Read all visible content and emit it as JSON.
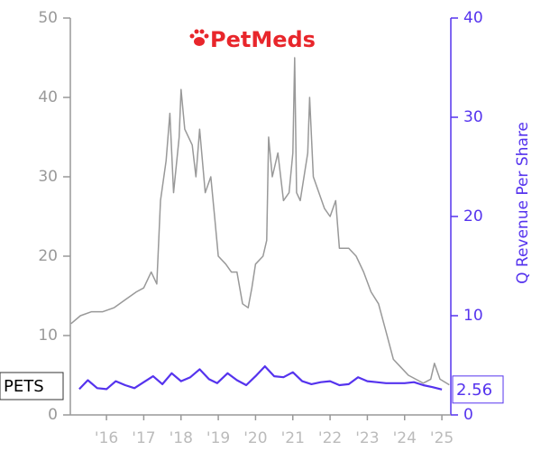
{
  "chart_data": {
    "type": "line",
    "logo": "PetMeds",
    "y2label": "Q Revenue Per Share",
    "xlim": [
      2015.03,
      2025.24
    ],
    "xticks": [
      {
        "value": 2016,
        "label": "'16"
      },
      {
        "value": 2017,
        "label": "'17"
      },
      {
        "value": 2018,
        "label": "'18"
      },
      {
        "value": 2019,
        "label": "'19"
      },
      {
        "value": 2020,
        "label": "'20"
      },
      {
        "value": 2021,
        "label": "'21"
      },
      {
        "value": 2022,
        "label": "'22"
      },
      {
        "value": 2023,
        "label": "'23"
      },
      {
        "value": 2024,
        "label": "'24"
      },
      {
        "value": 2025,
        "label": "'25"
      }
    ],
    "ylim": [
      0,
      50
    ],
    "yticks": [
      0,
      10,
      20,
      30,
      40,
      50
    ],
    "y2lim": [
      0,
      40
    ],
    "y2ticks": [
      0,
      10,
      20,
      30,
      40
    ],
    "series": [
      {
        "name": "PETS",
        "color": "#999999",
        "x": [
          2015.05,
          2015.3,
          2015.6,
          2015.9,
          2016.2,
          2016.5,
          2016.8,
          2017.0,
          2017.2,
          2017.35,
          2017.45,
          2017.6,
          2017.7,
          2017.8,
          2017.95,
          2018.0,
          2018.1,
          2018.3,
          2018.4,
          2018.5,
          2018.65,
          2018.8,
          2018.9,
          2019.0,
          2019.2,
          2019.35,
          2019.5,
          2019.65,
          2019.8,
          2019.9,
          2020.0,
          2020.2,
          2020.3,
          2020.35,
          2020.45,
          2020.6,
          2020.75,
          2020.9,
          2021.0,
          2021.05,
          2021.1,
          2021.2,
          2021.4,
          2021.45,
          2021.55,
          2021.7,
          2021.85,
          2022.0,
          2022.15,
          2022.25,
          2022.5,
          2022.7,
          2022.9,
          2023.1,
          2023.3,
          2023.5,
          2023.7,
          2023.9,
          2024.1,
          2024.3,
          2024.5,
          2024.7,
          2024.8,
          2024.95,
          2025.2
        ],
        "values": [
          11.5,
          12.5,
          13,
          13,
          13.5,
          14.5,
          15.5,
          16,
          18,
          16.5,
          27,
          32,
          38,
          28,
          35,
          41,
          36,
          34,
          30,
          36,
          28,
          30,
          25,
          20,
          19,
          18,
          18,
          14,
          13.5,
          16,
          19,
          20,
          22,
          35,
          30,
          33,
          27,
          28,
          33,
          45,
          28,
          27,
          33,
          40,
          30,
          28,
          26,
          25,
          27,
          21,
          21,
          20,
          18,
          15.5,
          14,
          10.5,
          7,
          6,
          5,
          4.5,
          4,
          4.5,
          6.5,
          4.5,
          3.8
        ]
      },
      {
        "color": "#5533ee",
        "axis": "y2",
        "x": [
          2015.27,
          2015.5,
          2015.75,
          2016.0,
          2016.25,
          2016.5,
          2016.75,
          2017.0,
          2017.25,
          2017.5,
          2017.75,
          2018.0,
          2018.25,
          2018.5,
          2018.75,
          2018.97,
          2019.25,
          2019.5,
          2019.75,
          2020.0,
          2020.25,
          2020.5,
          2020.75,
          2021.0,
          2021.25,
          2021.5,
          2021.75,
          2022.0,
          2022.25,
          2022.5,
          2022.75,
          2023.0,
          2023.25,
          2023.5,
          2023.75,
          2024.0,
          2024.25,
          2024.5,
          2024.75,
          2025.0
        ],
        "values": [
          2.6,
          3.5,
          2.7,
          2.6,
          3.4,
          3.0,
          2.7,
          3.3,
          3.9,
          3.1,
          4.2,
          3.4,
          3.8,
          4.6,
          3.6,
          3.2,
          4.2,
          3.5,
          3.0,
          3.9,
          4.9,
          3.9,
          3.8,
          4.3,
          3.4,
          3.1,
          3.3,
          3.4,
          3.0,
          3.1,
          3.8,
          3.4,
          3.3,
          3.2,
          3.2,
          3.2,
          3.3,
          3.0,
          2.8,
          2.56
        ]
      }
    ]
  }
}
